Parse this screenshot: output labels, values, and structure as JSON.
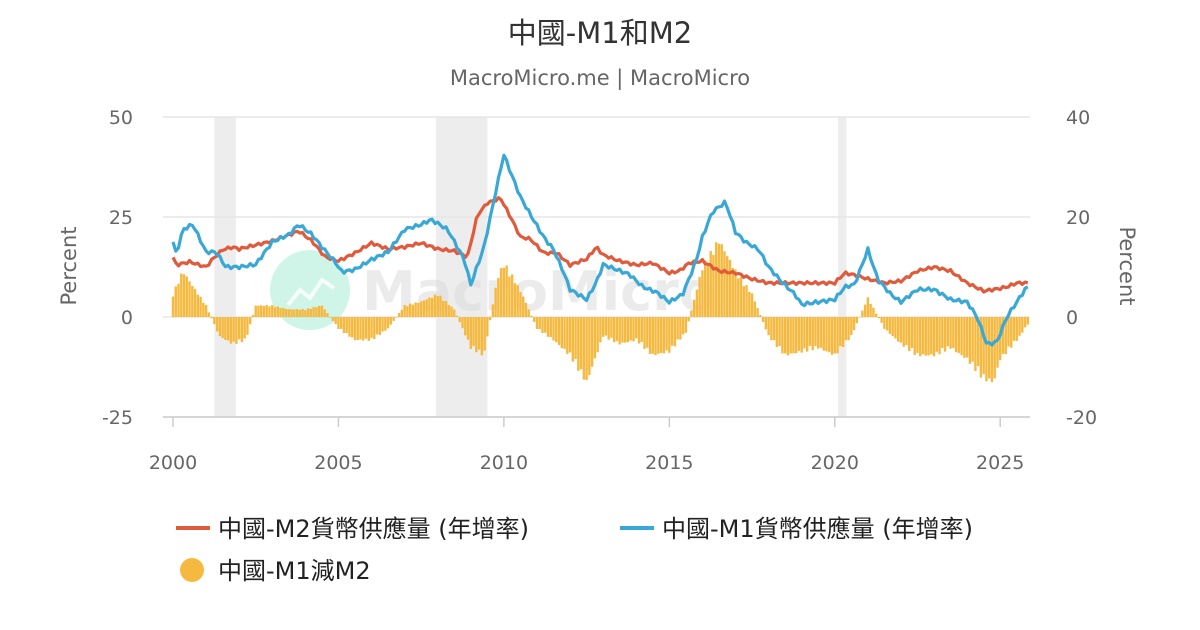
{
  "colors": {
    "m2": "#e05a3c",
    "m1": "#3aa8d6",
    "diff": "#f6b940",
    "recession": "#ededed",
    "grid": "#e6e6e6",
    "axis": "#cccccc",
    "watermark_logo": "#a8ecd7"
  },
  "watermark": {
    "text": "MacroMicro",
    "icon": "macromicro-logo-icon"
  },
  "chart_data": {
    "type": "line",
    "title": "中國-M1和M2",
    "subtitle": "MacroMicro.me | MacroMicro",
    "xlabel": "",
    "ylabel_left": "Percent",
    "ylabel_right": "Percent",
    "xlim": [
      2000.0,
      2025.9
    ],
    "x_ticks": [
      2000,
      2005,
      2010,
      2015,
      2020,
      2025
    ],
    "ylim_left": [
      -25,
      50
    ],
    "y_ticks_left": [
      50,
      25,
      0,
      -25
    ],
    "ylim_right": [
      -20,
      40
    ],
    "y_ticks_right": [
      40,
      20,
      0,
      -20
    ],
    "grid": true,
    "legend_position": "bottom",
    "recessions": [
      [
        2001.25,
        2001.9
      ],
      [
        2007.95,
        2009.5
      ],
      [
        2020.1,
        2020.35
      ]
    ],
    "series": [
      {
        "name": "中國-M2貨幣供應量 (年增率)",
        "type": "line",
        "axis": "left",
        "color_key": "m2",
        "x": [
          2000.0,
          2000.1,
          2000.5,
          2001.0,
          2001.2,
          2001.5,
          2001.8,
          2002.0,
          2002.5,
          2003.0,
          2003.5,
          2003.8,
          2004.2,
          2004.6,
          2005.0,
          2005.5,
          2006.0,
          2006.5,
          2007.0,
          2007.5,
          2008.0,
          2008.5,
          2008.9,
          2009.2,
          2009.5,
          2009.9,
          2010.2,
          2010.5,
          2010.8,
          2011.2,
          2011.6,
          2012.0,
          2012.5,
          2012.8,
          2013.0,
          2013.5,
          2014.0,
          2014.5,
          2015.0,
          2015.3,
          2015.6,
          2016.0,
          2016.5,
          2017.0,
          2017.5,
          2018.0,
          2018.5,
          2019.0,
          2019.5,
          2020.0,
          2020.3,
          2020.6,
          2021.0,
          2021.5,
          2022.0,
          2022.5,
          2023.0,
          2023.5,
          2024.0,
          2024.5,
          2024.9,
          2025.2,
          2025.5,
          2025.8
        ],
        "y": [
          14.9,
          13.0,
          13.8,
          12.5,
          14.5,
          16.8,
          17.5,
          17.0,
          18.0,
          19.0,
          20.5,
          21.5,
          19.0,
          15.0,
          14.0,
          16.0,
          18.5,
          17.0,
          17.5,
          18.5,
          17.0,
          16.5,
          15.0,
          25.5,
          28.5,
          29.7,
          25.0,
          20.0,
          19.5,
          16.0,
          16.0,
          13.0,
          14.5,
          17.5,
          15.5,
          14.0,
          13.0,
          13.5,
          11.0,
          11.5,
          13.5,
          14.0,
          11.5,
          11.0,
          9.5,
          8.5,
          8.5,
          8.5,
          8.5,
          8.5,
          11.0,
          10.5,
          9.5,
          8.5,
          9.0,
          11.5,
          12.5,
          11.5,
          8.5,
          6.5,
          7.0,
          7.5,
          8.5,
          8.5
        ]
      },
      {
        "name": "中國-M1貨幣供應量 (年增率)",
        "type": "line",
        "axis": "right",
        "color_key": "m1",
        "x": [
          2000.0,
          2000.1,
          2000.3,
          2000.6,
          2001.0,
          2001.3,
          2001.6,
          2002.0,
          2002.5,
          2003.0,
          2003.5,
          2003.8,
          2004.2,
          2004.5,
          2004.9,
          2005.1,
          2005.5,
          2006.0,
          2006.5,
          2007.0,
          2007.5,
          2007.8,
          2008.3,
          2008.8,
          2009.0,
          2009.4,
          2009.8,
          2010.0,
          2010.2,
          2010.5,
          2010.8,
          2011.2,
          2011.5,
          2011.8,
          2012.0,
          2012.5,
          2012.8,
          2013.0,
          2013.4,
          2013.8,
          2014.2,
          2014.6,
          2015.0,
          2015.4,
          2015.8,
          2016.0,
          2016.3,
          2016.7,
          2017.0,
          2017.3,
          2017.7,
          2018.0,
          2018.4,
          2018.8,
          2019.0,
          2019.5,
          2020.0,
          2020.3,
          2020.6,
          2021.0,
          2021.3,
          2021.7,
          2022.0,
          2022.5,
          2023.0,
          2023.5,
          2024.0,
          2024.3,
          2024.6,
          2024.9,
          2025.2,
          2025.5,
          2025.8
        ],
        "y": [
          15.0,
          12.5,
          17.5,
          18.5,
          13.0,
          13.0,
          10.0,
          10.0,
          10.5,
          15.0,
          16.5,
          18.5,
          16.5,
          14.0,
          11.0,
          9.0,
          9.5,
          11.5,
          13.0,
          17.5,
          18.5,
          19.5,
          17.5,
          11.5,
          6.5,
          14.0,
          26.5,
          32.5,
          29.0,
          24.0,
          20.5,
          16.0,
          13.5,
          9.0,
          5.5,
          3.5,
          7.0,
          10.5,
          9.5,
          8.5,
          6.0,
          5.0,
          3.0,
          4.5,
          11.0,
          16.0,
          21.0,
          23.0,
          17.0,
          15.0,
          13.5,
          10.0,
          7.0,
          4.5,
          2.5,
          3.0,
          3.5,
          6.0,
          6.5,
          13.5,
          7.5,
          4.5,
          3.0,
          5.5,
          5.5,
          3.5,
          3.0,
          0.0,
          -5.5,
          -5.0,
          0.0,
          3.0,
          6.0
        ]
      },
      {
        "name": "中國-M1減M2",
        "type": "bar",
        "axis": "left",
        "color_key": "diff",
        "x": [
          2000.0,
          2000.3,
          2000.6,
          2001.0,
          2001.4,
          2001.8,
          2002.2,
          2002.5,
          2003.0,
          2003.5,
          2004.0,
          2004.5,
          2005.0,
          2005.5,
          2006.0,
          2006.5,
          2007.0,
          2007.5,
          2008.0,
          2008.5,
          2009.0,
          2009.4,
          2009.8,
          2010.0,
          2010.3,
          2010.6,
          2011.0,
          2011.5,
          2012.0,
          2012.5,
          2013.0,
          2013.5,
          2014.0,
          2014.5,
          2015.0,
          2015.5,
          2016.0,
          2016.5,
          2017.0,
          2017.5,
          2018.0,
          2018.5,
          2019.0,
          2019.5,
          2020.0,
          2020.5,
          2021.0,
          2021.5,
          2022.0,
          2022.5,
          2023.0,
          2023.5,
          2024.0,
          2024.5,
          2024.8,
          2025.0,
          2025.3,
          2025.6,
          2025.8
        ],
        "y": [
          6.0,
          12.0,
          8.0,
          3.0,
          -5.0,
          -7.0,
          -6.0,
          3.0,
          3.0,
          2.0,
          2.0,
          3.0,
          -3.0,
          -6.0,
          -6.0,
          -3.0,
          3.0,
          4.0,
          6.0,
          2.0,
          -8.0,
          -10.0,
          10.0,
          14.0,
          10.0,
          5.0,
          -3.0,
          -6.0,
          -10.0,
          -17.0,
          -5.0,
          -7.0,
          -6.0,
          -10.0,
          -9.0,
          -4.0,
          13.0,
          20.0,
          12.0,
          6.0,
          -5.0,
          -10.0,
          -9.0,
          -8.0,
          -10.0,
          -5.0,
          5.0,
          -3.0,
          -7.0,
          -10.0,
          -10.0,
          -8.0,
          -11.0,
          -16.0,
          -17.0,
          -11.0,
          -8.0,
          -5.0,
          -2.0
        ]
      }
    ]
  }
}
